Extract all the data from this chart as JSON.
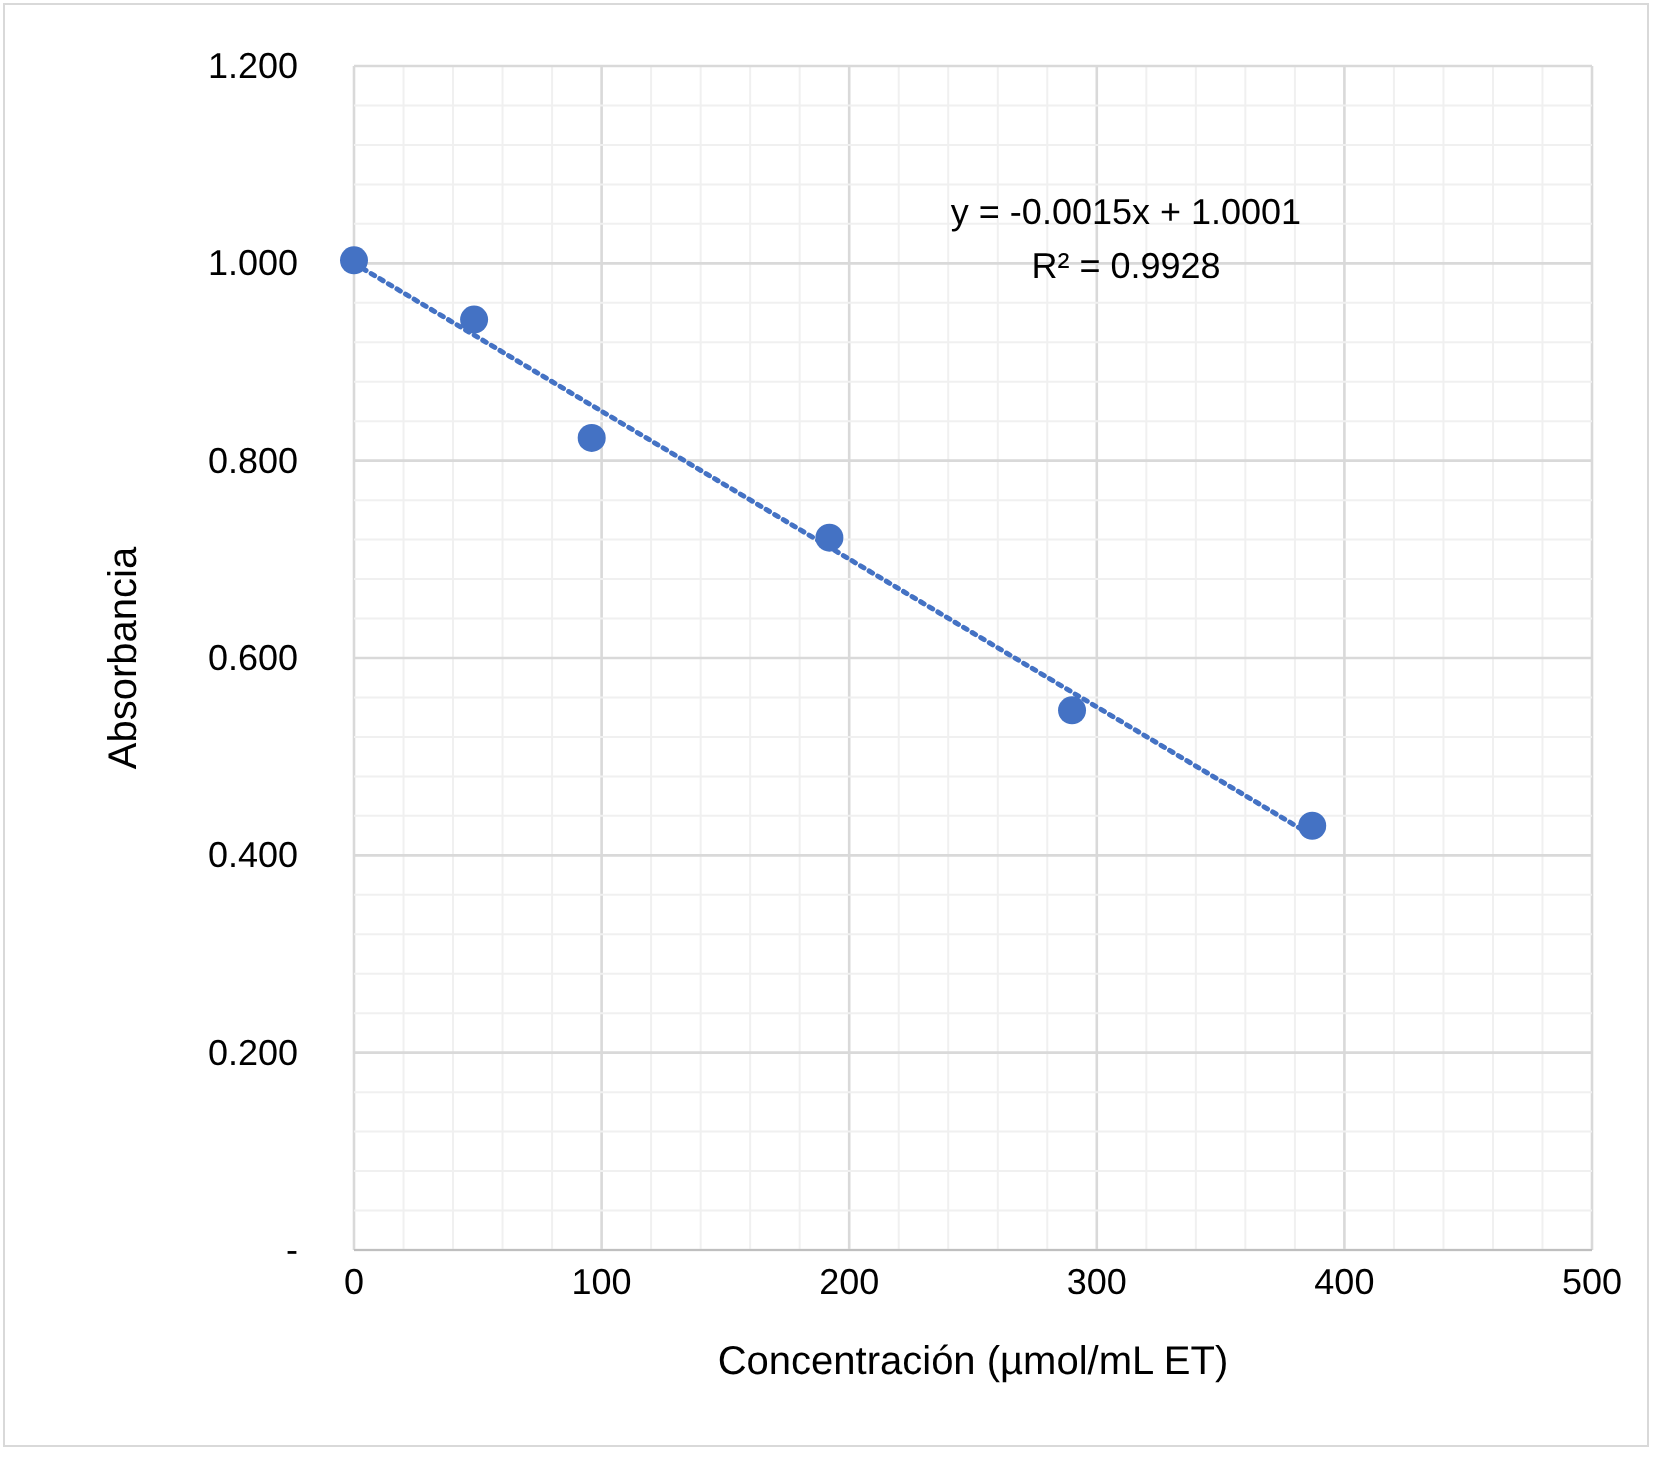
{
  "chart_data": {
    "type": "scatter",
    "xlabel": "Concentración (µmol/mL ET)",
    "ylabel": "Absorbancia",
    "xlim": [
      0,
      500
    ],
    "ylim": [
      0,
      1.2
    ],
    "xticks": [
      0,
      {
        "value": 20,
        "label": null
      },
      {
        "value": 40,
        "label": null
      },
      {
        "value": 60,
        "label": null
      },
      {
        "value": 80,
        "label": null
      },
      100,
      {
        "value": 120,
        "label": null
      },
      {
        "value": 140,
        "label": null
      },
      {
        "value": 160,
        "label": null
      },
      {
        "value": 180,
        "label": null
      },
      200,
      {
        "value": 220,
        "label": null
      },
      {
        "value": 240,
        "label": null
      },
      {
        "value": 260,
        "label": null
      },
      {
        "value": 280,
        "label": null
      },
      300,
      {
        "value": 320,
        "label": null
      },
      {
        "value": 340,
        "label": null
      },
      {
        "value": 360,
        "label": null
      },
      {
        "value": 380,
        "label": null
      },
      400,
      {
        "value": 420,
        "label": null
      },
      {
        "value": 440,
        "label": null
      },
      {
        "value": 460,
        "label": null
      },
      {
        "value": 480,
        "label": null
      },
      500
    ],
    "yticks": [
      {
        "value": 0,
        "label": "-"
      },
      {
        "value": 0.04,
        "label": null
      },
      {
        "value": 0.08,
        "label": null
      },
      {
        "value": 0.12,
        "label": null
      },
      {
        "value": 0.16,
        "label": null
      },
      {
        "value": 0.2,
        "label": "0.200"
      },
      {
        "value": 0.24,
        "label": null
      },
      {
        "value": 0.28,
        "label": null
      },
      {
        "value": 0.32,
        "label": null
      },
      {
        "value": 0.36,
        "label": null
      },
      {
        "value": 0.4,
        "label": "0.400"
      },
      {
        "value": 0.44,
        "label": null
      },
      {
        "value": 0.48,
        "label": null
      },
      {
        "value": 0.52,
        "label": null
      },
      {
        "value": 0.56,
        "label": null
      },
      {
        "value": 0.6,
        "label": "0.600"
      },
      {
        "value": 0.64,
        "label": null
      },
      {
        "value": 0.68,
        "label": null
      },
      {
        "value": 0.72,
        "label": null
      },
      {
        "value": 0.76,
        "label": null
      },
      {
        "value": 0.8,
        "label": "0.800"
      },
      {
        "value": 0.84,
        "label": null
      },
      {
        "value": 0.88,
        "label": null
      },
      {
        "value": 0.92,
        "label": null
      },
      {
        "value": 0.96,
        "label": null
      },
      {
        "value": 1.0,
        "label": "1.000"
      },
      {
        "value": 1.04,
        "label": null
      },
      {
        "value": 1.08,
        "label": null
      },
      {
        "value": 1.12,
        "label": null
      },
      {
        "value": 1.16,
        "label": null
      },
      {
        "value": 1.2,
        "label": "1.200"
      }
    ],
    "grid": true,
    "marker": "circle",
    "annotations": [
      {
        "text": "y = -0.0015x + 1.0001"
      },
      {
        "text": "R² = 0.9928"
      }
    ],
    "series": [
      {
        "color": "#4472c4",
        "x": [
          0,
          48.5,
          96,
          192,
          290,
          387
        ],
        "values": [
          1.003,
          0.943,
          0.823,
          0.722,
          0.547,
          0.43
        ]
      },
      {
        "type": "line",
        "color": "#4472c4",
        "line_style": "dotted",
        "marker": "none",
        "x": [
          0,
          387
        ],
        "values": [
          1.0,
          0.42
        ]
      }
    ]
  }
}
